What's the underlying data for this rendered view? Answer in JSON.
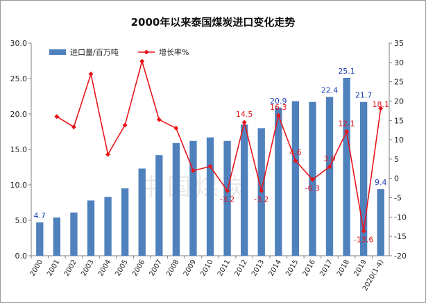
{
  "chart_data": {
    "type": "bar",
    "title": "2000年以来泰国煤炭进口变化走势",
    "categories": [
      "2000",
      "2001",
      "2002",
      "2003",
      "2004",
      "2005",
      "2006",
      "2007",
      "2008",
      "2009",
      "2010",
      "2011",
      "2012",
      "2013",
      "2014",
      "2015",
      "2016",
      "2017",
      "2018",
      "2019",
      "2020(1-4)"
    ],
    "series": [
      {
        "name": "进口量/百万吨",
        "type": "bar",
        "axis": "left",
        "color": "#4f81bd",
        "values": [
          4.7,
          5.4,
          6.1,
          7.8,
          8.3,
          9.5,
          12.3,
          14.2,
          15.9,
          16.2,
          16.7,
          16.2,
          18.5,
          18.0,
          20.9,
          21.8,
          21.7,
          22.4,
          25.1,
          21.7,
          9.4
        ]
      },
      {
        "name": "增长率%",
        "type": "line",
        "axis": "right",
        "color": "#e8141a",
        "values": [
          null,
          16.0,
          13.3,
          27.0,
          6.2,
          13.8,
          30.3,
          15.2,
          13.0,
          2.0,
          3.1,
          -3.2,
          14.5,
          -3.2,
          16.3,
          4.6,
          -0.3,
          3.0,
          12.1,
          -13.6,
          18.1
        ]
      }
    ],
    "bar_labels": [
      {
        "index": 0,
        "text": "4.7"
      },
      {
        "index": 14,
        "text": "20.9"
      },
      {
        "index": 17,
        "text": "22.4"
      },
      {
        "index": 18,
        "text": "25.1"
      },
      {
        "index": 19,
        "text": "21.7"
      },
      {
        "index": 20,
        "text": "9.4"
      }
    ],
    "rate_labels": [
      {
        "index": 11,
        "text": "-3.2"
      },
      {
        "index": 12,
        "text": "14.5"
      },
      {
        "index": 13,
        "text": "-3.2"
      },
      {
        "index": 14,
        "text": "16.3"
      },
      {
        "index": 15,
        "text": "4.6"
      },
      {
        "index": 16,
        "text": "-0.3"
      },
      {
        "index": 17,
        "text": "3.0"
      },
      {
        "index": 18,
        "text": "12.1"
      },
      {
        "index": 19,
        "text": "-13.6"
      },
      {
        "index": 20,
        "text": "18.1"
      }
    ],
    "ylim_left": [
      0,
      30
    ],
    "yticks_left": [
      "0.0",
      "5.0",
      "10.0",
      "15.0",
      "20.0",
      "25.0",
      "30.0"
    ],
    "ylim_right": [
      -20,
      35
    ],
    "yticks_right": [
      "-20",
      "-15",
      "-10",
      "-5",
      "0",
      "5",
      "10",
      "15",
      "20",
      "25",
      "30",
      "35"
    ],
    "legend_position": "top-left",
    "grid": false,
    "watermark": "中国煤炭"
  }
}
